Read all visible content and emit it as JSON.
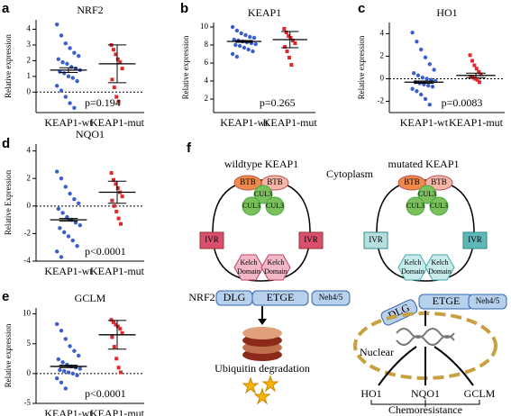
{
  "chart_data": [
    {
      "type": "dot",
      "panel": "a",
      "title": "NRF2",
      "y_label": "Relative expression",
      "categories": [
        "KEAP1-wt",
        "KEAP1-mut"
      ],
      "colors": [
        "#3a5fcd",
        "#e0282d"
      ],
      "values": [
        [
          4.3,
          3.6,
          3.1,
          2.8,
          2.5,
          2.3,
          2.1,
          1.9,
          1.8,
          1.6,
          1.5,
          1.4,
          1.3,
          1.2,
          1.0,
          0.9,
          0.7,
          0.4,
          0.1,
          -0.3,
          -0.7,
          -1.0
        ],
        [
          3.0,
          2.7,
          2.4,
          2.1,
          1.9,
          1.5,
          0.8,
          0.3,
          -0.3,
          -0.6
        ]
      ],
      "means": [
        1.4,
        1.8
      ],
      "errors": [
        0.15,
        1.2
      ],
      "annotation": "p=0.194",
      "ylim": [
        -1.3,
        4.6
      ],
      "yticks": [
        0,
        1,
        2,
        3,
        4
      ]
    },
    {
      "type": "dot",
      "panel": "b",
      "title": "KEAP1",
      "y_label": "Relative expression",
      "categories": [
        "KEAP1-wt",
        "KEAP1-mut"
      ],
      "colors": [
        "#3a5fcd",
        "#e0282d"
      ],
      "values": [
        [
          10.0,
          9.6,
          9.3,
          9.1,
          8.9,
          8.8,
          8.6,
          8.5,
          8.4,
          8.3,
          8.2,
          8.1,
          8.0,
          7.9,
          7.7,
          7.5,
          7.3,
          7.0,
          6.7
        ],
        [
          9.8,
          9.4,
          9.0,
          8.8,
          8.5,
          8.2,
          7.8,
          7.3,
          6.6,
          5.8
        ]
      ],
      "means": [
        8.4,
        8.6
      ],
      "errors": [
        0.1,
        0.9
      ],
      "annotation": "p=0.265",
      "ylim": [
        0.5,
        10.5
      ],
      "yticks": [
        2,
        4,
        6,
        8,
        10
      ]
    },
    {
      "type": "dot",
      "panel": "c",
      "title": "HO1",
      "y_label": "Relative expression",
      "categories": [
        "KEAP1-wt",
        "KEAP1-mut"
      ],
      "colors": [
        "#3a5fcd",
        "#e0282d"
      ],
      "values": [
        [
          4.1,
          3.3,
          2.6,
          1.9,
          1.3,
          0.8,
          0.5,
          0.3,
          0.1,
          0,
          -0.1,
          -0.2,
          -0.3,
          -0.4,
          -0.5,
          -0.6,
          -0.7,
          -0.9,
          -1.1,
          -1.4,
          -1.8,
          -2.3
        ],
        [
          2.1,
          1.6,
          1.2,
          0.9,
          0.6,
          0.4,
          0.2,
          0.1,
          0,
          -0.1,
          -0.3
        ]
      ],
      "means": [
        -0.3,
        0.3
      ],
      "errors": [
        0.1,
        0.2
      ],
      "annotation": "p=0.0083",
      "ylim": [
        -3,
        5
      ],
      "yticks": [
        -2,
        0,
        2,
        4
      ]
    },
    {
      "type": "dot",
      "panel": "d",
      "title": "NQO1",
      "y_label": "Relative Expression",
      "categories": [
        "KEAP1-wt",
        "KEAP1-mut"
      ],
      "colors": [
        "#3a5fcd",
        "#e0282d"
      ],
      "values": [
        [
          2.5,
          2.0,
          1.4,
          0.9,
          0.5,
          0.2,
          -0.2,
          -0.5,
          -0.8,
          -1.0,
          -1.2,
          -1.4,
          -1.6,
          -1.9,
          -2.2,
          -2.5,
          -2.9,
          -3.3,
          -3.7
        ],
        [
          2.4,
          1.9,
          1.6,
          1.3,
          1.0,
          0.7,
          0.4,
          0,
          -0.4,
          -0.9,
          -1.3
        ]
      ],
      "means": [
        -1.0,
        1.0
      ],
      "errors": [
        0.1,
        0.8
      ],
      "annotation": "p<0.0001",
      "ylim": [
        -4,
        4.5
      ],
      "yticks": [
        -4,
        -2,
        0,
        2,
        4
      ]
    },
    {
      "type": "dot",
      "panel": "e",
      "title": "GCLM",
      "y_label": "Relative expression",
      "categories": [
        "KEAP1-wt",
        "KEAP1-mut"
      ],
      "colors": [
        "#3a5fcd",
        "#e0282d"
      ],
      "values": [
        [
          8.3,
          7.2,
          5.8,
          4.6,
          3.8,
          3.0,
          2.4,
          1.9,
          1.5,
          1.2,
          1.0,
          0.8,
          0.6,
          0.4,
          0.2,
          0,
          -0.3,
          -0.8,
          -1.5,
          -2.5
        ],
        [
          9.0,
          8.6,
          8.2,
          7.9,
          7.5,
          6.8,
          6.1,
          4.5,
          2.5,
          1.0,
          0.2
        ]
      ],
      "means": [
        1.2,
        6.5
      ],
      "errors": [
        0.2,
        2.4
      ],
      "annotation": "p<0.0001",
      "ylim": [
        -5,
        11
      ],
      "yticks": [
        -5,
        0,
        5,
        10
      ]
    }
  ],
  "diagram": {
    "panel": "f",
    "left_title": "wildtype KEAP1",
    "cytoplasm": "Cytoplasm",
    "right_title": "mutated KEAP1",
    "left_btb": [
      "BTB",
      "BTB"
    ],
    "right_btb": [
      "BTB",
      "BTB"
    ],
    "left_cul3": [
      "CUL3",
      "CUL3",
      "CUL3"
    ],
    "right_cul3": [
      "CUL3",
      "CUL3",
      "CUL3"
    ],
    "left_ivr": [
      "IVR",
      "IVR"
    ],
    "right_ivr": [
      "IVR",
      "IVR"
    ],
    "left_kelch": [
      [
        "Kelch",
        "Domain"
      ],
      [
        "Kelch",
        "Domain"
      ]
    ],
    "right_kelch": [
      [
        "Kelch",
        "Domain"
      ],
      [
        "Kelch",
        "Domain"
      ]
    ],
    "nrf2": "NRF2",
    "left_domains": [
      "DLG",
      "ETGE",
      "Neh4/5"
    ],
    "right_domains": [
      "DLG",
      "ETGE",
      "Neh4/5"
    ],
    "degradation": "Ubiquitin degradation",
    "nuclear": "Nuclear",
    "genes": [
      "HO1",
      "NQO1",
      "GCLM"
    ],
    "outcome": "Chemoresistance"
  }
}
